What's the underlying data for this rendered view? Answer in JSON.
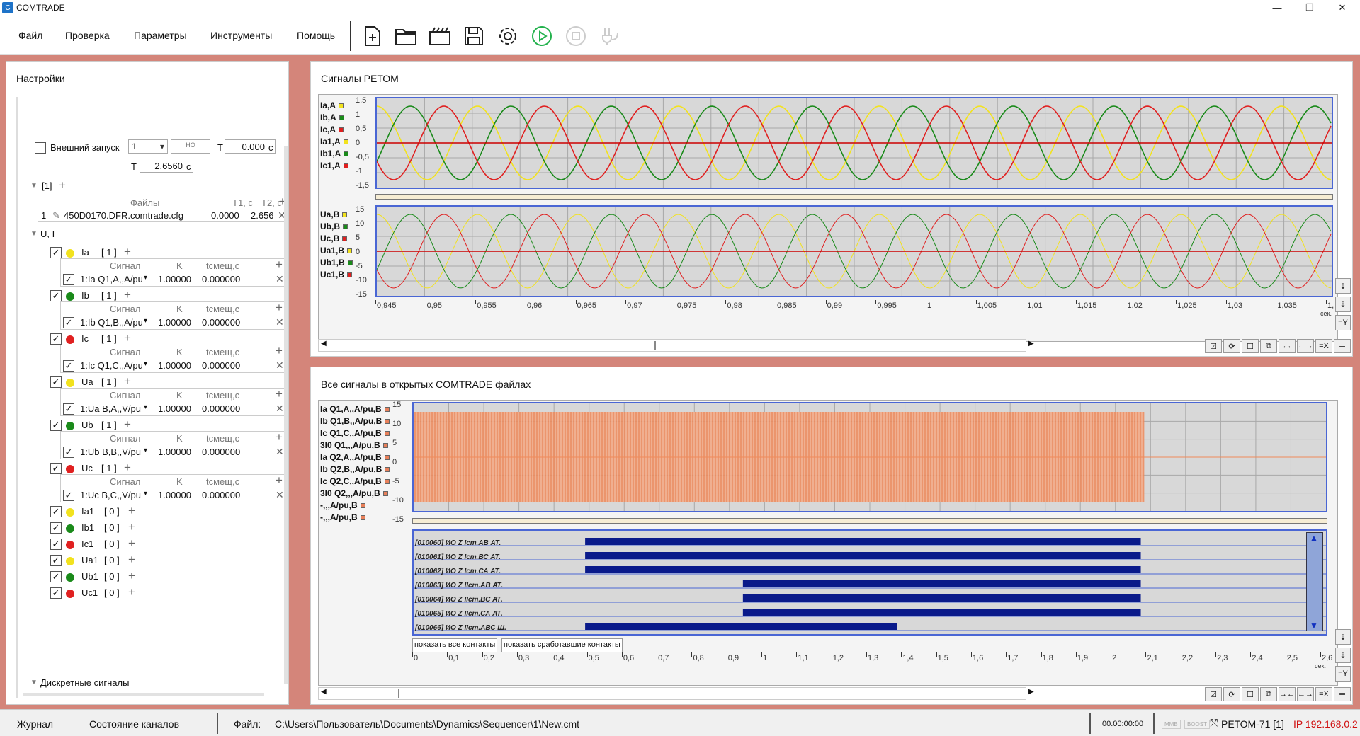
{
  "app": {
    "title": "COMTRADE",
    "logo_text": "C"
  },
  "window_controls": {
    "minimize": "—",
    "maximize": "❐",
    "close": "✕"
  },
  "menu": [
    "Файл",
    "Проверка",
    "Параметры",
    "Инструменты",
    "Помощь"
  ],
  "toolbar_icons": [
    "new-file-icon",
    "open-folder-icon",
    "open-archive-icon",
    "save-icon",
    "settings-gear-icon",
    "play-icon",
    "stop-icon",
    "plug-icon"
  ],
  "settings": {
    "title": "Настройки",
    "external_trigger_label": "Внешний запуск",
    "trigger_input": "1",
    "nc_label": "НО",
    "t_label": "T",
    "t_value": "0.000",
    "t_unit": "c",
    "t2_label": "T",
    "t2_value": "2.6560",
    "t2_unit": "c",
    "group1_label": "[1]",
    "files_headers": [
      "Файлы",
      "T1, с",
      "T2, с"
    ],
    "files_rows": [
      {
        "num": "1",
        "name": "450D0170.DFR.comtrade.cfg",
        "t1": "0.0000",
        "t2": "2.656"
      }
    ],
    "ui_group_label": "U, I",
    "signal_headers": {
      "signal": "Сигнал",
      "k": "K",
      "offset": "tсмещ,с"
    },
    "channels": [
      {
        "name": "Ia",
        "count": "[ 1 ]",
        "color": "#f2e21e",
        "signal": "1:Ia Q1,A,,A/pu",
        "k": "1.00000",
        "offset": "0.000000"
      },
      {
        "name": "Ib",
        "count": "[ 1 ]",
        "color": "#1a8a1a",
        "signal": "1:Ib Q1,B,,A/pu",
        "k": "1.00000",
        "offset": "0.000000"
      },
      {
        "name": "Ic",
        "count": "[ 1 ]",
        "color": "#e02020",
        "signal": "1:Ic Q1,C,,A/pu",
        "k": "1.00000",
        "offset": "0.000000"
      },
      {
        "name": "Ua",
        "count": "[ 1 ]",
        "color": "#f2e21e",
        "signal": "1:Ua B,A,,V/pu",
        "k": "1.00000",
        "offset": "0.000000"
      },
      {
        "name": "Ub",
        "count": "[ 1 ]",
        "color": "#1a8a1a",
        "signal": "1:Ub B,B,,V/pu",
        "k": "1.00000",
        "offset": "0.000000"
      },
      {
        "name": "Uc",
        "count": "[ 1 ]",
        "color": "#e02020",
        "signal": "1:Uc B,C,,V/pu",
        "k": "1.00000",
        "offset": "0.000000"
      }
    ],
    "empty_channels": [
      {
        "name": "Ia1",
        "count": "[ 0 ]",
        "color": "#f2e21e"
      },
      {
        "name": "Ib1",
        "count": "[ 0 ]",
        "color": "#1a8a1a"
      },
      {
        "name": "Ic1",
        "count": "[ 0 ]",
        "color": "#e02020"
      },
      {
        "name": "Ua1",
        "count": "[ 0 ]",
        "color": "#f2e21e"
      },
      {
        "name": "Ub1",
        "count": "[ 0 ]",
        "color": "#1a8a1a"
      },
      {
        "name": "Uc1",
        "count": "[ 0 ]",
        "color": "#e02020"
      }
    ],
    "discrete_label": "Дискретные сигналы"
  },
  "retom_panel": {
    "title": "Сигналы РЕТОМ",
    "current_legend": [
      "Ia,A",
      "Ib,A",
      "Ic,A",
      "Ia1,A",
      "Ib1,A",
      "Ic1,A"
    ],
    "current_legend_colors": [
      "#f2e21e",
      "#1a8a1a",
      "#e02020",
      "#f2e21e",
      "#1a8a1a",
      "#e02020"
    ],
    "current_ticks": [
      "1,5",
      "1",
      "0,5",
      "0",
      "-0,5",
      "-1",
      "-1,5"
    ],
    "voltage_legend": [
      "Ua,B",
      "Ub,B",
      "Uc,B",
      "Ua1,B",
      "Ub1,B",
      "Uc1,B"
    ],
    "voltage_legend_colors": [
      "#f2e21e",
      "#1a8a1a",
      "#e02020",
      "#f2e21e",
      "#1a8a1a",
      "#e02020"
    ],
    "voltage_ticks": [
      "15",
      "10",
      "5",
      "0",
      "-5",
      "-10",
      "-15"
    ],
    "x_ticks": [
      "0,945",
      "0,95",
      "0,955",
      "0,96",
      "0,965",
      "0,97",
      "0,975",
      "0,98",
      "0,985",
      "0,99",
      "0,995",
      "1",
      "1,005",
      "1,01",
      "1,015",
      "1,02",
      "1,025",
      "1,03",
      "1,035",
      "1,"
    ],
    "x_unit": "сек.",
    "side_buttons": [
      "⇣",
      "⇣",
      "=Y"
    ],
    "bottom_buttons": [
      "☑",
      "⟳",
      "☐",
      "⧉",
      "→←",
      "←→",
      "=X",
      "═"
    ]
  },
  "all_signals_panel": {
    "title": "Все сигналы в открытых COMTRADE файлах",
    "legend": [
      "Ia Q1,A,,A/pu,B",
      "Ib Q1,B,,A/pu,B",
      "Ic Q1,C,,A/pu,B",
      "3I0 Q1,,,A/pu,B",
      "Ia Q2,A,,A/pu,B",
      "Ib Q2,B,,A/pu,B",
      "Ic Q2,C,,A/pu,B",
      "3I0 Q2,,,A/pu,B",
      "-,,,A/pu,B",
      "-,,,A/pu,B"
    ],
    "ticks": [
      "15",
      "10",
      "5",
      "0",
      "-5",
      "-10",
      "-15"
    ],
    "discrete": [
      {
        "label": "[010060] ИО Z Iст.АВ АТ.",
        "start": 0.5,
        "end": 2.12
      },
      {
        "label": "[010061] ИО Z Iст.ВС АТ.",
        "start": 0.5,
        "end": 2.12
      },
      {
        "label": "[010062] ИО Z Iст.СА АТ.",
        "start": 0.5,
        "end": 2.12
      },
      {
        "label": "[010063] ИО Z IIст.АВ АТ.",
        "start": 0.96,
        "end": 2.12
      },
      {
        "label": "[010064] ИО Z IIст.ВС АТ.",
        "start": 0.96,
        "end": 2.12
      },
      {
        "label": "[010065] ИО Z IIст.СА АТ.",
        "start": 0.96,
        "end": 2.12
      },
      {
        "label": "[010066] ИО Z IIст.АВС Ш.",
        "start": 0.5,
        "end": 1.41
      }
    ],
    "show_all_btn": "показать все контакты",
    "show_triggered_btn": "показать сработавшие контакты",
    "x_ticks": [
      "0",
      "0,1",
      "0,2",
      "0,3",
      "0,4",
      "0,5",
      "0,6",
      "0,7",
      "0,8",
      "0,9",
      "1",
      "1,1",
      "1,2",
      "1,3",
      "1,4",
      "1,5",
      "1,6",
      "1,7",
      "1,8",
      "1,9",
      "2",
      "2,1",
      "2,2",
      "2,3",
      "2,4",
      "2,5",
      "2,6"
    ],
    "x_unit": "сек.",
    "signal_end": 2.13,
    "x_max": 2.66
  },
  "status": {
    "journal": "Журнал",
    "channels_state": "Состояние каналов",
    "file_label": "Файл:",
    "file_path": "C:\\Users\\Пользователь\\Documents\\Dynamics\\Sequencer\\1\\New.cmt",
    "time": "00.00:00:00",
    "device": "РЕТОМ-71 [1]",
    "ip": "IP 192.168.0.2",
    "badge1": "MMB",
    "badge2": "BOOST"
  }
}
